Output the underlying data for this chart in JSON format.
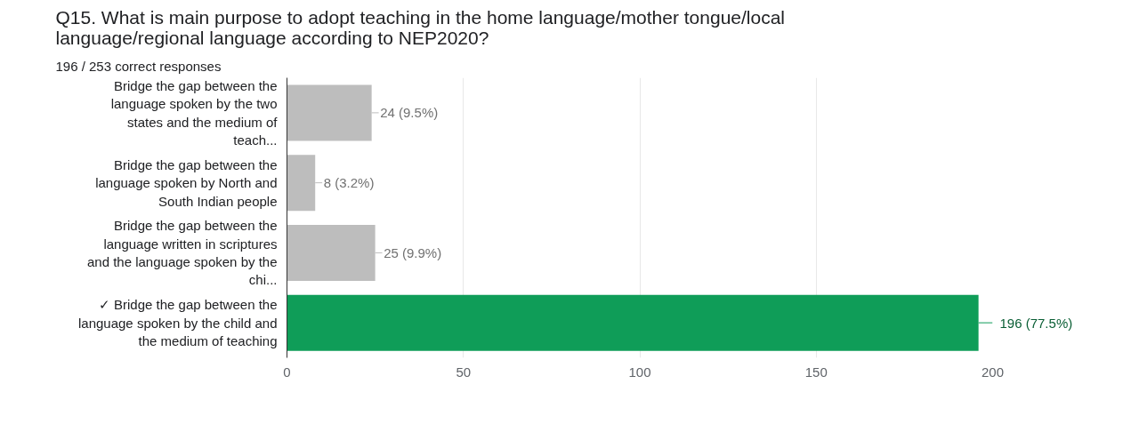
{
  "chart_data": {
    "type": "bar",
    "orientation": "horizontal",
    "title": "Q15.  What is main purpose to adopt teaching in the home language/mother tongue/local language/regional language according to NEP2020?",
    "subtitle": "196 / 253 correct responses",
    "categories": [
      "Bridge the gap between the language spoken by the two states and the medium of teach...",
      "Bridge the gap between the language spoken by North and South Indian people",
      "Bridge the gap between the language written in scriptures and the language spoken by the chi...",
      "✓ Bridge the gap between the language spoken by the child and the medium of teaching"
    ],
    "values": [
      24,
      8,
      25,
      196
    ],
    "colors": [
      "#bdbdbd",
      "#bdbdbd",
      "#bdbdbd",
      "#0f9d58"
    ],
    "value_labels": [
      "24 (9.5%)",
      "8 (3.2%)",
      "25 (9.9%)",
      "196 (77.5%)"
    ],
    "xlim": [
      0,
      200
    ],
    "xticks": [
      0,
      50,
      100,
      150,
      200
    ],
    "grid": "x"
  }
}
